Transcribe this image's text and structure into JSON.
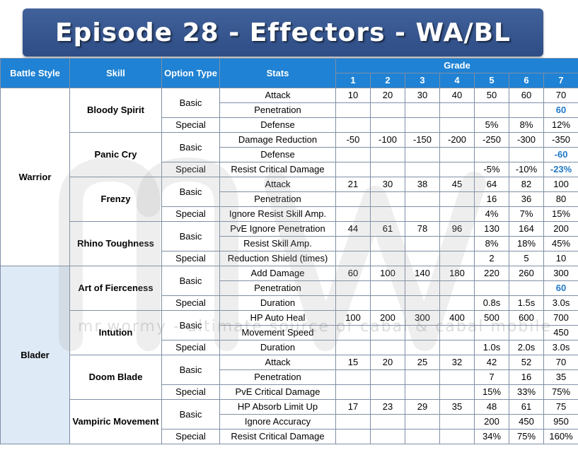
{
  "banner": {
    "title": "Episode 28 - Effectors - WA/BL"
  },
  "colors": {
    "header_blue": "#1f82d4",
    "banner_blue": "#3a5a93",
    "highlight_blue": "#1f78c8",
    "blader_bg": "#deeaf5"
  },
  "headers": {
    "battle_style": "Battle Style",
    "skill": "Skill",
    "option_type": "Option Type",
    "stats": "Stats",
    "grade": "Grade",
    "grades": [
      "1",
      "2",
      "3",
      "4",
      "5",
      "6",
      "7"
    ]
  },
  "battle_styles": [
    {
      "name": "Warrior",
      "skills": [
        {
          "name": "Bloody Spirit",
          "rows": [
            {
              "type": "Basic",
              "stat": "Attack",
              "values": [
                "10",
                "20",
                "30",
                "40",
                "50",
                "60",
                "70"
              ]
            },
            {
              "type": "",
              "stat": "Penetration",
              "values": [
                "",
                "",
                "",
                "",
                "",
                "",
                "60"
              ]
            },
            {
              "type": "Special",
              "stat": "Defense",
              "values": [
                "",
                "",
                "",
                "",
                "5%",
                "8%",
                "12%"
              ]
            }
          ]
        },
        {
          "name": "Panic Cry",
          "rows": [
            {
              "type": "Basic",
              "stat": "Damage Reduction",
              "values": [
                "-50",
                "-100",
                "-150",
                "-200",
                "-250",
                "-300",
                "-350"
              ]
            },
            {
              "type": "",
              "stat": "Defense",
              "values": [
                "",
                "",
                "",
                "",
                "",
                "",
                "-60"
              ]
            },
            {
              "type": "Special",
              "stat": "Resist Critical Damage",
              "values": [
                "",
                "",
                "",
                "",
                "-5%",
                "-10%",
                "-23%"
              ]
            }
          ]
        },
        {
          "name": "Frenzy",
          "rows": [
            {
              "type": "Basic",
              "stat": "Attack",
              "values": [
                "21",
                "30",
                "38",
                "45",
                "64",
                "82",
                "100"
              ]
            },
            {
              "type": "",
              "stat": "Penetration",
              "values": [
                "",
                "",
                "",
                "",
                "16",
                "36",
                "80"
              ]
            },
            {
              "type": "Special",
              "stat": "Ignore Resist Skill Amp.",
              "values": [
                "",
                "",
                "",
                "",
                "4%",
                "7%",
                "15%"
              ]
            }
          ]
        },
        {
          "name": "Rhino Toughness",
          "rows": [
            {
              "type": "Basic",
              "stat": "PvE Ignore Penetration",
              "values": [
                "44",
                "61",
                "78",
                "96",
                "130",
                "164",
                "200"
              ]
            },
            {
              "type": "",
              "stat": "Resist Skill Amp.",
              "values": [
                "",
                "",
                "",
                "",
                "8%",
                "18%",
                "45%"
              ]
            },
            {
              "type": "Special",
              "stat": "Reduction Shield (times)",
              "values": [
                "",
                "",
                "",
                "",
                "2",
                "5",
                "10"
              ]
            }
          ]
        }
      ]
    },
    {
      "name": "Blader",
      "skills": [
        {
          "name": "Art of Fierceness",
          "rows": [
            {
              "type": "Basic",
              "stat": "Add Damage",
              "values": [
                "60",
                "100",
                "140",
                "180",
                "220",
                "260",
                "300"
              ]
            },
            {
              "type": "",
              "stat": "Penetration",
              "values": [
                "",
                "",
                "",
                "",
                "",
                "",
                "60"
              ]
            },
            {
              "type": "Special",
              "stat": "Duration",
              "values": [
                "",
                "",
                "",
                "",
                "0.8s",
                "1.5s",
                "3.0s"
              ]
            }
          ]
        },
        {
          "name": "Intution",
          "rows": [
            {
              "type": "Basic",
              "stat": "HP Auto Heal",
              "values": [
                "100",
                "200",
                "300",
                "400",
                "500",
                "600",
                "700"
              ]
            },
            {
              "type": "",
              "stat": "Movement Speed",
              "values": [
                "",
                "",
                "",
                "",
                "",
                "",
                "450"
              ]
            },
            {
              "type": "Special",
              "stat": "Duration",
              "values": [
                "",
                "",
                "",
                "",
                "1.0s",
                "2.0s",
                "3.0s"
              ]
            }
          ]
        },
        {
          "name": "Doom Blade",
          "rows": [
            {
              "type": "Basic",
              "stat": "Attack",
              "values": [
                "15",
                "20",
                "25",
                "32",
                "42",
                "52",
                "70"
              ]
            },
            {
              "type": "",
              "stat": "Penetration",
              "values": [
                "",
                "",
                "",
                "",
                "7",
                "16",
                "35"
              ]
            },
            {
              "type": "Special",
              "stat": "PvE Critical Damage",
              "values": [
                "",
                "",
                "",
                "",
                "15%",
                "33%",
                "75%"
              ]
            }
          ]
        },
        {
          "name": "Vampiric Movement",
          "rows": [
            {
              "type": "Basic",
              "stat": "HP Absorb Limit Up",
              "values": [
                "17",
                "23",
                "29",
                "35",
                "48",
                "61",
                "75"
              ]
            },
            {
              "type": "",
              "stat": "Ignore Accuracy",
              "values": [
                "",
                "",
                "",
                "",
                "200",
                "450",
                "950"
              ]
            },
            {
              "type": "Special",
              "stat": "Resist Critical Damage",
              "values": [
                "",
                "",
                "",
                "",
                "34%",
                "75%",
                "160%"
              ]
            }
          ]
        }
      ]
    }
  ],
  "highlighted_cells": [
    "0.0.1.6",
    "0.1.1.6",
    "0.1.2.6",
    "1.0.1.6"
  ],
  "watermark": {
    "text": "mr.wormy - ultimate source of cabal & cabal mobile"
  }
}
